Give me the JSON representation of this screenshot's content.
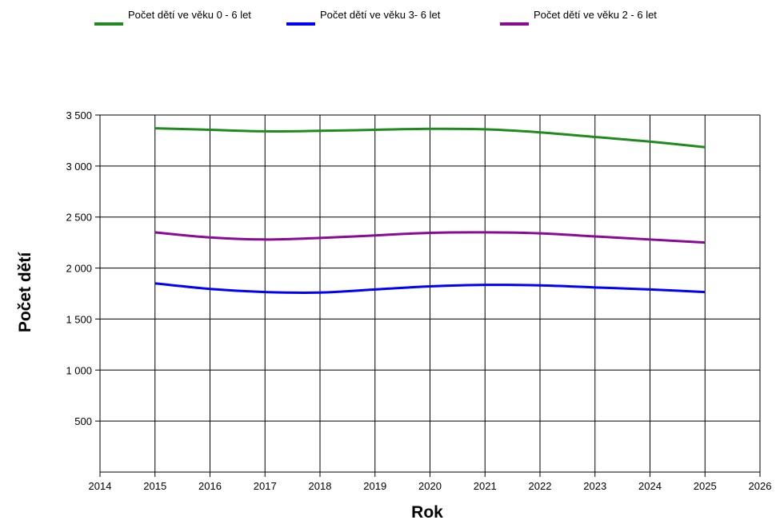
{
  "chart_data": {
    "type": "line",
    "title": "",
    "xlabel": "Rok",
    "ylabel": "Počet dětí",
    "xlim": [
      2014,
      2026
    ],
    "ylim": [
      0,
      3500
    ],
    "x_ticks": [
      "2014",
      "2015",
      "2016",
      "2017",
      "2018",
      "2019",
      "2020",
      "2021",
      "2022",
      "2023",
      "2024",
      "2025",
      "2026"
    ],
    "y_ticks": [
      "500",
      "1 000",
      "1 500",
      "2 000",
      "2 500",
      "3 000",
      "3 500"
    ],
    "y_tick_values": [
      500,
      1000,
      1500,
      2000,
      2500,
      3000,
      3500
    ],
    "grid": true,
    "legend_position": "top",
    "x": [
      2015,
      2016,
      2017,
      2018,
      2019,
      2020,
      2021,
      2022,
      2023,
      2024,
      2025
    ],
    "series": [
      {
        "name": "Počet dětí ve věku 0 - 6 let",
        "color": "#1f8b1f",
        "values": [
          3370,
          3355,
          3340,
          3345,
          3355,
          3365,
          3360,
          3330,
          3285,
          3240,
          3185
        ]
      },
      {
        "name": "Počet dětí ve věku 3- 6 let",
        "color": "#0000ff",
        "values": [
          1850,
          1795,
          1765,
          1760,
          1790,
          1820,
          1835,
          1830,
          1810,
          1790,
          1765
        ]
      },
      {
        "name": "Počet dětí ve věku 2 - 6 let",
        "color": "#8a0a96",
        "values": [
          2350,
          2300,
          2280,
          2295,
          2320,
          2345,
          2350,
          2340,
          2310,
          2280,
          2250
        ]
      }
    ]
  }
}
